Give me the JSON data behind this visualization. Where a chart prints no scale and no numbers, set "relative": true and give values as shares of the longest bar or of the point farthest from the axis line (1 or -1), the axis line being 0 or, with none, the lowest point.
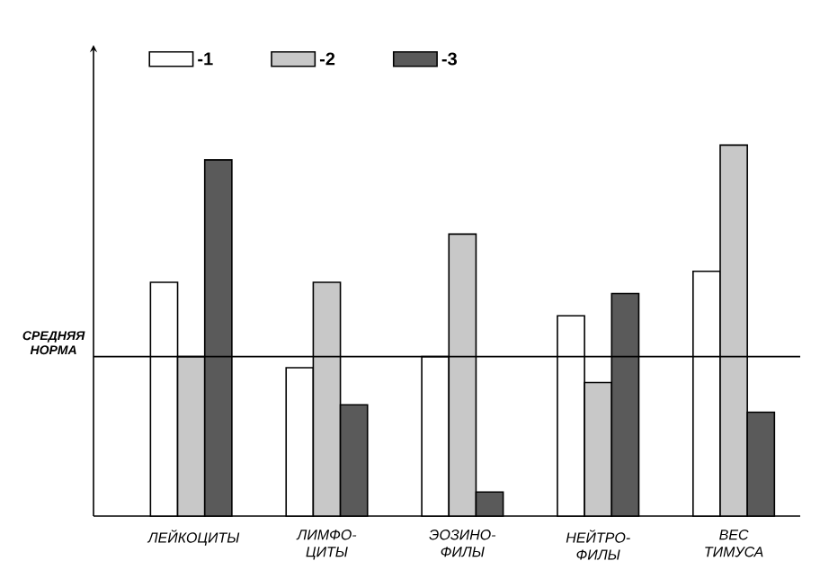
{
  "chart_data": {
    "type": "bar",
    "relative": true,
    "categories": [
      "ЛЕЙКОЦИТЫ",
      "ЛИМФО- ЦИТЫ",
      "ЭОЗИНО- ФИЛЫ",
      "НЕЙТРО- ФИЛЫ",
      "ВЕС ТИМУСА"
    ],
    "series": [
      {
        "name": "-1",
        "color": "#ffffff",
        "values": [
          0.63,
          0.4,
          0.43,
          0.54,
          0.66
        ]
      },
      {
        "name": "-2",
        "color": "#c8c8c8",
        "values": [
          0.43,
          0.63,
          0.76,
          0.36,
          1.0
        ]
      },
      {
        "name": "-3",
        "color": "#5a5a5a",
        "values": [
          0.96,
          0.3,
          0.065,
          0.6,
          0.28
        ]
      }
    ],
    "ref_lines": [
      {
        "axis": "y",
        "value": 0.43,
        "label": "СРЕДНЯЯ НОРМА"
      }
    ],
    "legend": "top left"
  }
}
